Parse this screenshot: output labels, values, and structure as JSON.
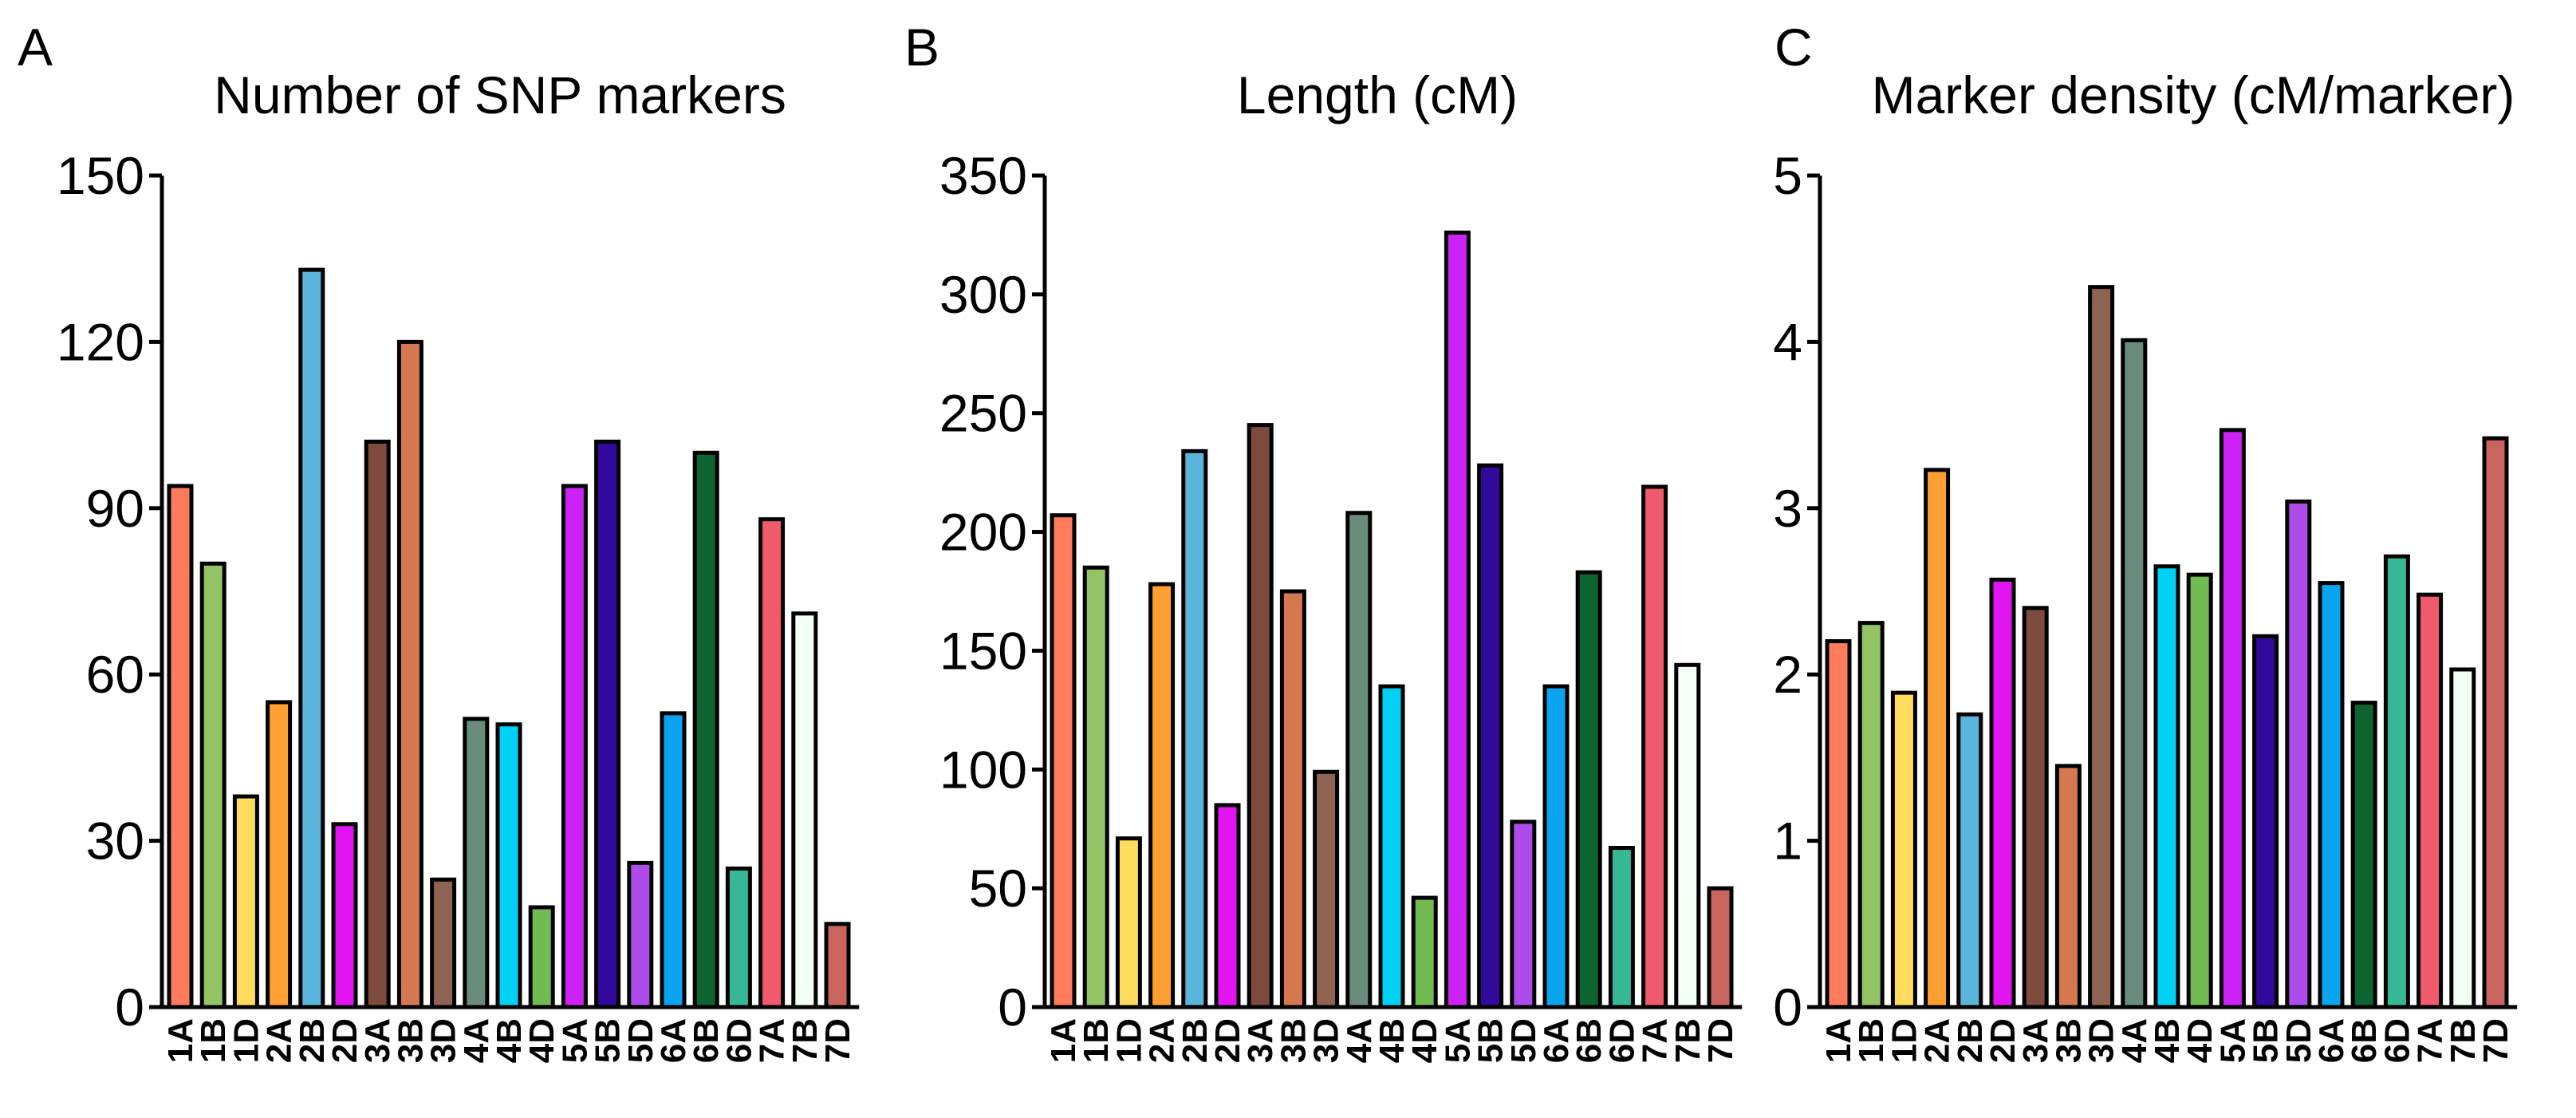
{
  "colors": [
    "#FF7B5C",
    "#92C466",
    "#FFDC5E",
    "#FF9F33",
    "#5AB4DC",
    "#E214F2",
    "#7D4A3E",
    "#D6784F",
    "#8E6352",
    "#6A8C7C",
    "#00D1F5",
    "#72BA52",
    "#CC22F5",
    "#310A9C",
    "#AD4CEB",
    "#0AA4F0",
    "#0E6431",
    "#36B896",
    "#F05A6C",
    "#F2FFF4",
    "#C9645E"
  ],
  "chart_data": [
    {
      "type": "bar",
      "panel": "A",
      "title": "Number of SNP markers",
      "xlabel": "",
      "ylabel": "",
      "ylim": [
        0,
        150
      ],
      "yticks": [
        "0",
        "30",
        "60",
        "90",
        "120",
        "150"
      ],
      "categories": [
        "1A",
        "1B",
        "1D",
        "2A",
        "2B",
        "2D",
        "3A",
        "3B",
        "3D",
        "4A",
        "4B",
        "4D",
        "5A",
        "5B",
        "5D",
        "6A",
        "6B",
        "6D",
        "7A",
        "7B",
        "7D"
      ],
      "values": [
        94,
        80,
        38,
        55,
        133,
        33,
        102,
        120,
        23,
        52,
        51,
        18,
        94,
        102,
        26,
        53,
        100,
        25,
        88,
        71,
        15
      ]
    },
    {
      "type": "bar",
      "panel": "B",
      "title": "Length (cM)",
      "xlabel": "",
      "ylabel": "",
      "ylim": [
        0,
        350
      ],
      "yticks": [
        "0",
        "50",
        "100",
        "150",
        "200",
        "250",
        "300",
        "350"
      ],
      "categories": [
        "1A",
        "1B",
        "1D",
        "2A",
        "2B",
        "2D",
        "3A",
        "3B",
        "3D",
        "4A",
        "4B",
        "4D",
        "5A",
        "5B",
        "5D",
        "6A",
        "6B",
        "6D",
        "7A",
        "7B",
        "7D"
      ],
      "values": [
        207,
        185,
        71,
        178,
        234,
        85,
        245,
        175,
        99,
        208,
        135,
        46,
        326,
        228,
        78,
        135,
        183,
        67,
        219,
        144,
        50
      ]
    },
    {
      "type": "bar",
      "panel": "C",
      "title": "Marker density (cM/marker)",
      "xlabel": "",
      "ylabel": "",
      "ylim": [
        0,
        5
      ],
      "yticks": [
        "0",
        "1",
        "2",
        "3",
        "4",
        "5"
      ],
      "categories": [
        "1A",
        "1B",
        "1D",
        "2A",
        "2B",
        "2D",
        "3A",
        "3B",
        "3D",
        "4A",
        "4B",
        "4D",
        "5A",
        "5B",
        "5D",
        "6A",
        "6B",
        "6D",
        "7A",
        "7B",
        "7D"
      ],
      "values": [
        2.2,
        2.31,
        1.89,
        3.23,
        1.76,
        2.57,
        2.4,
        1.45,
        4.33,
        4.01,
        2.65,
        2.6,
        3.47,
        2.23,
        3.04,
        2.55,
        1.83,
        2.71,
        2.48,
        2.03,
        3.42
      ]
    }
  ]
}
